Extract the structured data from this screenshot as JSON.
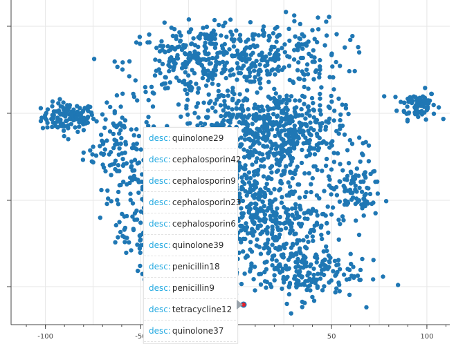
{
  "chart_data": {
    "type": "scatter",
    "title": "",
    "xlabel": "",
    "ylabel": "",
    "xlim": [
      -118,
      112
    ],
    "x_ticks": [
      "-100",
      "-50",
      "50",
      "100"
    ],
    "x_tick_values": [
      -100,
      -50,
      50,
      100
    ],
    "grid": true,
    "point_color": "#1f77b4",
    "highlight_color": "#e8202a",
    "clusters": [
      {
        "cx": -88,
        "cy": 45,
        "n": 120,
        "sx": 7,
        "sy": 4
      },
      {
        "cx": 95,
        "cy": 52,
        "n": 80,
        "sx": 5,
        "sy": 4
      },
      {
        "cx": -62,
        "cy": 30,
        "n": 110,
        "sx": 9,
        "sy": 12
      },
      {
        "cx": -38,
        "cy": 8,
        "n": 160,
        "sx": 11,
        "sy": 9
      },
      {
        "cx": -22,
        "cy": 75,
        "n": 220,
        "sx": 18,
        "sy": 10
      },
      {
        "cx": 12,
        "cy": 80,
        "n": 260,
        "sx": 22,
        "sy": 10
      },
      {
        "cx": 2,
        "cy": 42,
        "n": 200,
        "sx": 16,
        "sy": 8
      },
      {
        "cx": 28,
        "cy": 35,
        "n": 360,
        "sx": 14,
        "sy": 14
      },
      {
        "cx": -8,
        "cy": 12,
        "n": 220,
        "sx": 18,
        "sy": 10
      },
      {
        "cx": 18,
        "cy": -12,
        "n": 300,
        "sx": 17,
        "sy": 10
      },
      {
        "cx": 32,
        "cy": -40,
        "n": 220,
        "sx": 16,
        "sy": 8
      },
      {
        "cx": 62,
        "cy": 5,
        "n": 90,
        "sx": 7,
        "sy": 8
      },
      {
        "cx": -48,
        "cy": -20,
        "n": 80,
        "sx": 7,
        "sy": 9
      },
      {
        "cx": -30,
        "cy": -40,
        "n": 90,
        "sx": 10,
        "sy": 10
      }
    ],
    "highlight_point": {
      "x": -6,
      "y": -58
    }
  },
  "tooltip": {
    "key_label": "desc:",
    "rows": [
      "quinolone29",
      "cephalosporin42",
      "cephalosporin9",
      "cephalosporin23",
      "cephalosporin6",
      "quinolone39",
      "penicillin18",
      "penicillin9",
      "tetracycline12",
      "quinolone37"
    ]
  }
}
